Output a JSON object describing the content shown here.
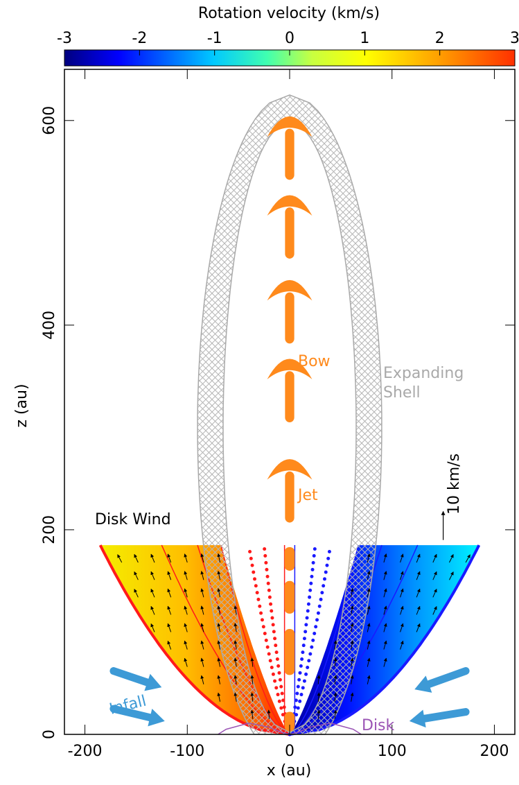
{
  "chart_data": {
    "type": "schematic",
    "xlabel": "x (au)",
    "ylabel": "z (au)",
    "xlim": [
      -220,
      220
    ],
    "ylim": [
      0,
      650
    ],
    "xticks": [
      -200,
      -100,
      0,
      100,
      200
    ],
    "yticks": [
      0,
      200,
      400,
      600
    ],
    "colorbar": {
      "label": "Rotation velocity (km/s)",
      "lim": [
        -3,
        3
      ],
      "ticks": [
        -3,
        -2,
        -1,
        0,
        1,
        2,
        3
      ]
    },
    "colors": {
      "jet": "#ff8a1c",
      "shell": "#a9a9a9",
      "infall": "#3d9ad6",
      "disk": "#9b55b5",
      "red": "#ff1a1a",
      "blue": "#1a1aff"
    },
    "annotations": [
      {
        "text": "Disk Wind",
        "color": "#000000"
      },
      {
        "text": "Bow",
        "color": "#ff8a1c"
      },
      {
        "text": "Jet",
        "color": "#ff8a1c"
      },
      {
        "text": "Expanding",
        "color": "#a9a9a9"
      },
      {
        "text": "Shell",
        "color": "#a9a9a9"
      },
      {
        "text": "Infall",
        "color": "#3d9ad6"
      },
      {
        "text": "Disk",
        "color": "#9b55b5"
      },
      {
        "text": "10 km/s",
        "color": "#000000"
      }
    ]
  }
}
